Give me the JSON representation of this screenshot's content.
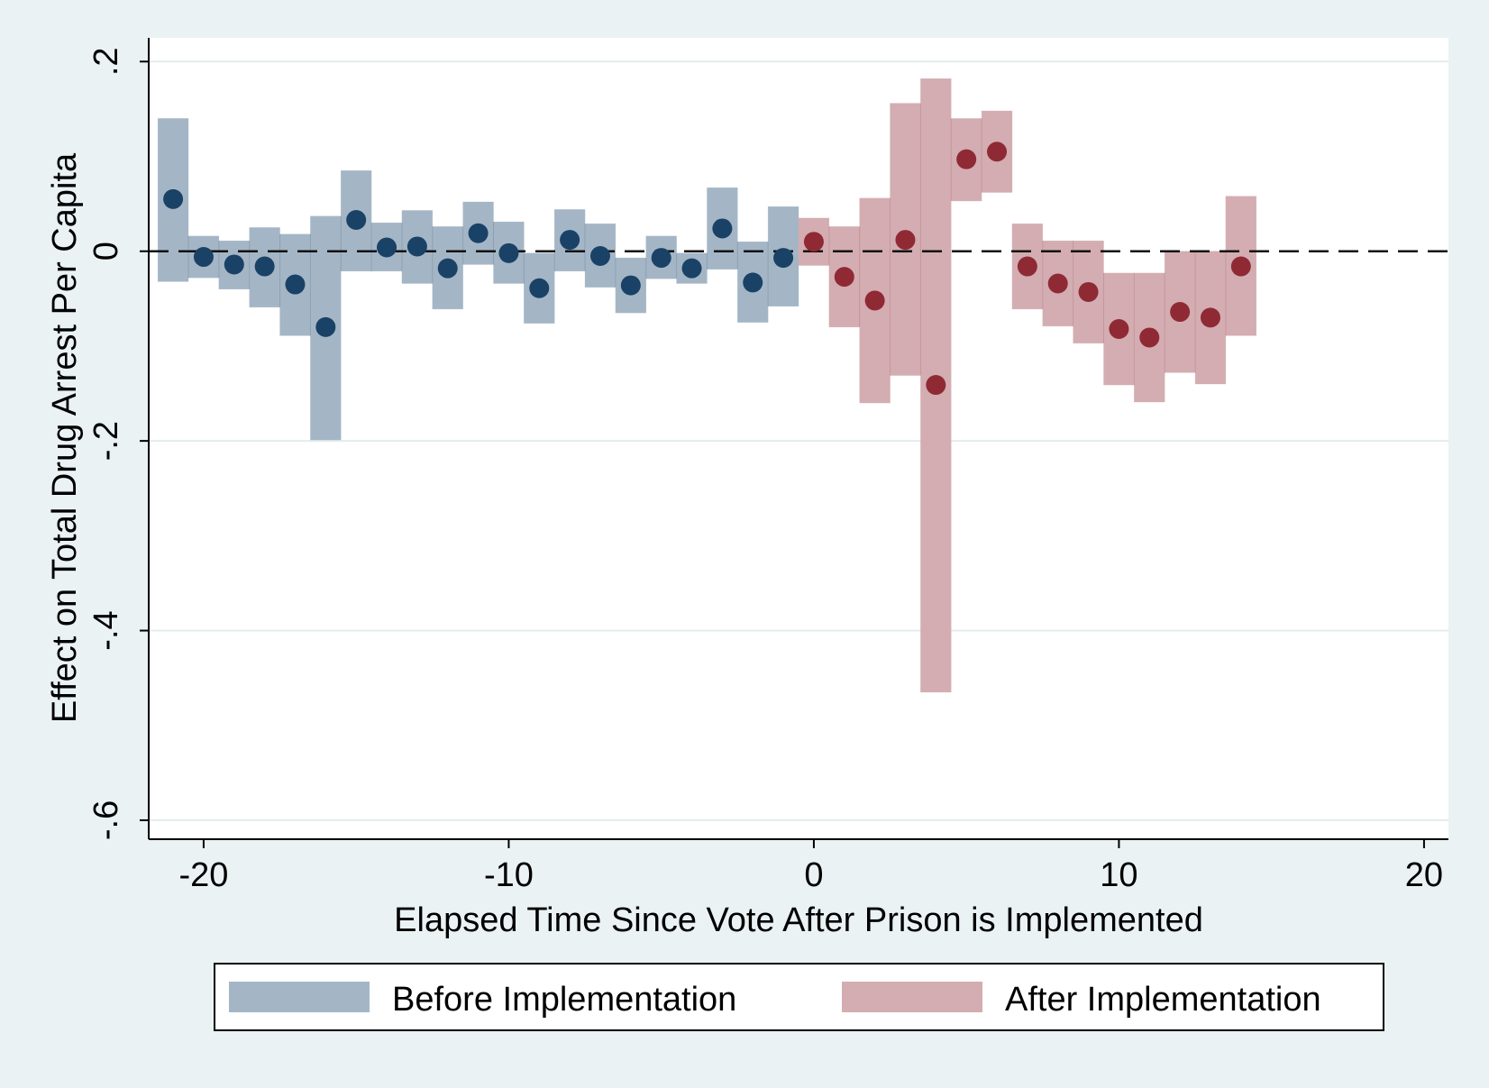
{
  "chart_data": {
    "type": "scatter",
    "title": "",
    "xlabel": "Elapsed Time Since Vote After Prison is Implemented",
    "ylabel": "Effect on Total Drug Arrest Per Capita",
    "xlim": [
      -21.8,
      20.8
    ],
    "ylim": [
      -0.62,
      0.225
    ],
    "x_ticks": [
      -20,
      -10,
      0,
      10,
      20
    ],
    "x_tick_labels": [
      "-20",
      "-10",
      "0",
      "10",
      "20"
    ],
    "y_ticks": [
      0.2,
      0,
      -0.2,
      -0.4,
      -0.6
    ],
    "y_tick_labels": [
      ".2",
      "0",
      "-.2",
      "-.4",
      "-.6"
    ],
    "grid": "horizontal",
    "reference_line": {
      "y": 0,
      "style": "dashed"
    },
    "legend_position": "bottom",
    "colors": {
      "background": "#eaf2f3",
      "plot_background": "#ffffff",
      "gridline": "#e3eced",
      "before_band": "#a4b6c6",
      "before_point": "#1a4266",
      "after_band": "#d3adb1",
      "after_point": "#8f2a35"
    },
    "series": [
      {
        "name": "Before Implementation",
        "x": [
          -21,
          -20,
          -19,
          -18,
          -17,
          -16,
          -15,
          -14,
          -13,
          -12,
          -11,
          -10,
          -9,
          -8,
          -7,
          -6,
          -5,
          -4,
          -3,
          -2,
          -1
        ],
        "y": [
          0.055,
          -0.006,
          -0.014,
          -0.016,
          -0.035,
          -0.08,
          0.033,
          0.004,
          0.005,
          -0.018,
          0.019,
          -0.002,
          -0.039,
          0.012,
          -0.005,
          -0.036,
          -0.007,
          -0.018,
          0.024,
          -0.033,
          -0.007
        ],
        "ci_low": [
          -0.032,
          -0.028,
          -0.04,
          -0.059,
          -0.089,
          -0.199,
          -0.021,
          -0.021,
          -0.034,
          -0.061,
          -0.014,
          -0.034,
          -0.076,
          -0.021,
          -0.038,
          -0.065,
          -0.029,
          -0.034,
          -0.019,
          -0.075,
          -0.058
        ],
        "ci_high": [
          0.14,
          0.016,
          0.011,
          0.025,
          0.018,
          0.037,
          0.085,
          0.03,
          0.043,
          0.026,
          0.052,
          0.031,
          -0.002,
          0.044,
          0.029,
          -0.007,
          0.016,
          -0.002,
          0.067,
          0.01,
          0.047
        ]
      },
      {
        "name": "After Implementation",
        "x": [
          0,
          1,
          2,
          3,
          4,
          5,
          6,
          7,
          8,
          9,
          10,
          11,
          12,
          13,
          14
        ],
        "y": [
          0.01,
          -0.027,
          -0.052,
          0.012,
          -0.141,
          0.097,
          0.105,
          -0.016,
          -0.034,
          -0.043,
          -0.082,
          -0.091,
          -0.064,
          -0.07,
          -0.016
        ],
        "ci_low": [
          -0.015,
          -0.08,
          -0.16,
          -0.131,
          -0.465,
          0.053,
          0.062,
          -0.061,
          -0.079,
          -0.097,
          -0.141,
          -0.159,
          -0.128,
          -0.14,
          -0.089
        ],
        "ci_high": [
          0.035,
          0.026,
          0.056,
          0.156,
          0.182,
          0.14,
          0.148,
          0.029,
          0.011,
          0.011,
          -0.023,
          -0.023,
          0,
          0,
          0.058
        ]
      }
    ]
  }
}
